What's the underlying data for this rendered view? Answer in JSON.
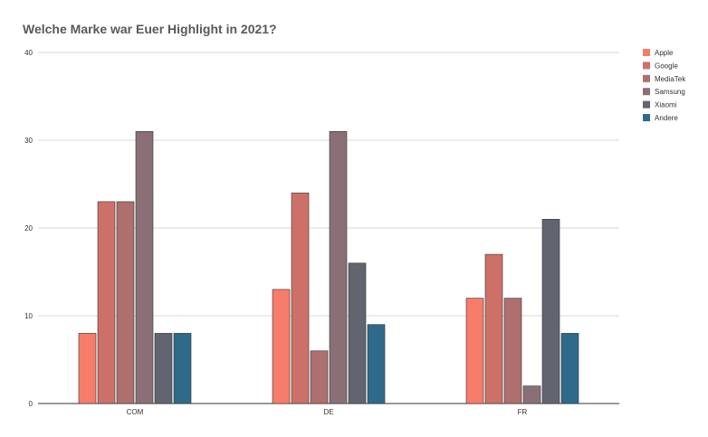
{
  "chart_data": {
    "type": "bar",
    "title": "Welche Marke war Euer Highlight in 2021?",
    "xlabel": "",
    "ylabel": "",
    "categories": [
      "COM",
      "DE",
      "FR"
    ],
    "ylim": [
      0,
      40
    ],
    "yticks": [
      0,
      10,
      20,
      30,
      40
    ],
    "grid": true,
    "legend_position": "right",
    "series": [
      {
        "name": "Apple",
        "color": "#f87c6a",
        "values": [
          8,
          13,
          12
        ]
      },
      {
        "name": "Google",
        "color": "#cd7168",
        "values": [
          23,
          24,
          17
        ]
      },
      {
        "name": "MediaTek",
        "color": "#ae6f6f",
        "values": [
          23,
          6,
          12
        ]
      },
      {
        "name": "Samsung",
        "color": "#8a7076",
        "values": [
          31,
          31,
          2
        ]
      },
      {
        "name": "Xiaomi",
        "color": "#62646f",
        "values": [
          8,
          16,
          21
        ]
      },
      {
        "name": "Andere",
        "color": "#2e6a89",
        "values": [
          8,
          9,
          8
        ]
      }
    ]
  }
}
